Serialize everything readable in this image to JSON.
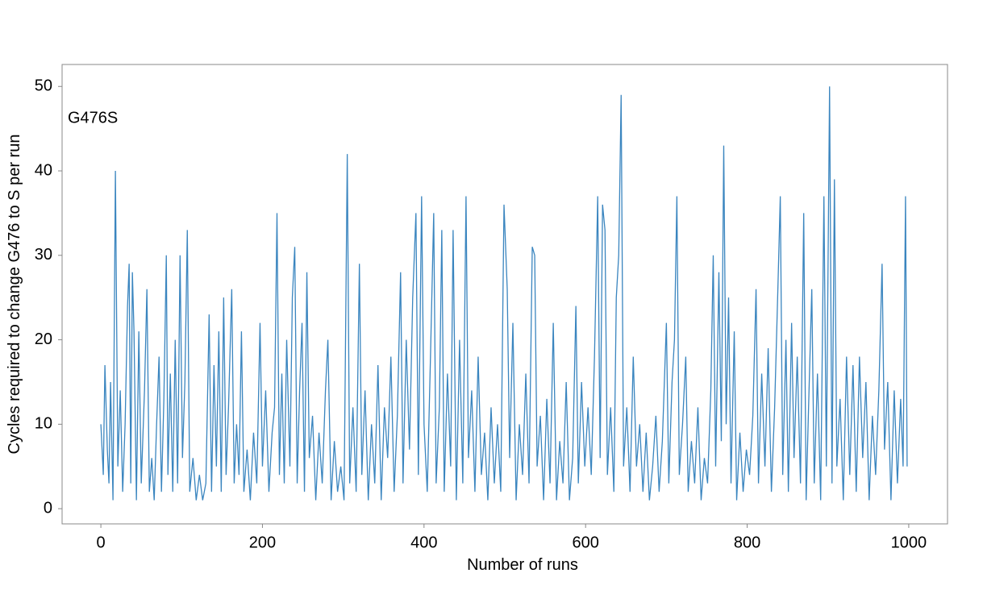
{
  "chart_data": {
    "type": "line",
    "xlabel": "Number of runs",
    "ylabel": "Cycles required to change G476 to S per run",
    "annotation": "G476S",
    "xlim": [
      -48,
      1048
    ],
    "ylim": [
      -1.8,
      52.6
    ],
    "xticks": [
      0,
      200,
      400,
      600,
      800,
      1000
    ],
    "yticks": [
      0,
      10,
      20,
      30,
      40,
      50
    ],
    "grid": false,
    "series": [
      {
        "color": "#3a85bf",
        "x": [
          0,
          3,
          5,
          8,
          10,
          12,
          15,
          18,
          21,
          24,
          27,
          30,
          33,
          35,
          37,
          39,
          41,
          44,
          47,
          50,
          54,
          57,
          60,
          63,
          66,
          69,
          72,
          75,
          78,
          81,
          83,
          86,
          89,
          92,
          95,
          98,
          101,
          104,
          107,
          110,
          114,
          118,
          122,
          126,
          130,
          134,
          137,
          140,
          143,
          146,
          149,
          152,
          155,
          158,
          162,
          165,
          168,
          171,
          174,
          177,
          181,
          185,
          189,
          193,
          197,
          200,
          204,
          208,
          212,
          215,
          218,
          221,
          224,
          227,
          230,
          234,
          237,
          240,
          243,
          246,
          249,
          252,
          255,
          258,
          262,
          266,
          270,
          274,
          278,
          281,
          285,
          289,
          293,
          297,
          301,
          305,
          308,
          312,
          316,
          320,
          323,
          327,
          331,
          335,
          339,
          343,
          347,
          351,
          355,
          359,
          363,
          367,
          371,
          374,
          378,
          382,
          386,
          390,
          393,
          397,
          400,
          404,
          408,
          412,
          415,
          419,
          422,
          425,
          429,
          433,
          436,
          440,
          444,
          448,
          452,
          455,
          459,
          463,
          467,
          471,
          475,
          479,
          483,
          487,
          491,
          495,
          499,
          503,
          506,
          510,
          514,
          518,
          522,
          526,
          530,
          534,
          537,
          540,
          544,
          548,
          552,
          556,
          560,
          564,
          568,
          572,
          576,
          580,
          584,
          588,
          591,
          595,
          599,
          603,
          607,
          611,
          615,
          618,
          621,
          624,
          627,
          631,
          635,
          638,
          641,
          644,
          647,
          651,
          655,
          659,
          663,
          667,
          671,
          675,
          679,
          683,
          687,
          691,
          695,
          700,
          703,
          707,
          710,
          713,
          716,
          720,
          724,
          727,
          731,
          735,
          739,
          743,
          747,
          751,
          755,
          758,
          761,
          765,
          768,
          771,
          774,
          777,
          780,
          784,
          787,
          791,
          795,
          799,
          803,
          807,
          811,
          814,
          818,
          822,
          826,
          830,
          834,
          838,
          841,
          844,
          848,
          851,
          855,
          858,
          862,
          866,
          870,
          873,
          876,
          880,
          883,
          887,
          891,
          895,
          898,
          902,
          905,
          908,
          911,
          915,
          919,
          923,
          927,
          931,
          935,
          939,
          943,
          947,
          951,
          955,
          959,
          963,
          967,
          970,
          974,
          978,
          982,
          986,
          990,
          993,
          996,
          998
        ],
        "values": [
          10,
          4,
          17,
          7,
          3,
          15,
          1,
          40,
          5,
          14,
          2,
          10,
          24,
          29,
          3,
          28,
          21,
          1,
          21,
          3,
          14,
          26,
          2,
          6,
          1,
          10,
          18,
          2,
          13,
          30,
          4,
          16,
          2,
          20,
          3,
          30,
          6,
          15,
          33,
          2,
          6,
          1,
          4,
          1,
          3,
          23,
          2,
          17,
          5,
          21,
          2,
          25,
          4,
          12,
          26,
          3,
          10,
          4,
          21,
          2,
          7,
          1,
          9,
          3,
          22,
          5,
          14,
          2,
          9,
          12,
          35,
          4,
          16,
          3,
          20,
          5,
          25,
          31,
          3,
          14,
          22,
          2,
          28,
          6,
          11,
          1,
          9,
          3,
          14,
          20,
          1,
          8,
          2,
          5,
          1,
          42,
          3,
          12,
          2,
          29,
          4,
          14,
          1,
          10,
          3,
          17,
          1,
          12,
          6,
          18,
          2,
          11,
          28,
          3,
          20,
          7,
          25,
          35,
          4,
          37,
          10,
          2,
          18,
          35,
          3,
          12,
          33,
          2,
          16,
          5,
          33,
          1,
          20,
          3,
          37,
          6,
          14,
          2,
          18,
          4,
          9,
          1,
          12,
          3,
          10,
          2,
          36,
          26,
          6,
          22,
          1,
          10,
          4,
          16,
          3,
          31,
          30,
          5,
          11,
          1,
          13,
          3,
          22,
          1,
          8,
          3,
          15,
          1,
          6,
          24,
          3,
          15,
          5,
          12,
          4,
          18,
          37,
          6,
          36,
          33,
          4,
          12,
          2,
          25,
          30,
          49,
          5,
          12,
          2,
          18,
          5,
          10,
          2,
          9,
          1,
          5,
          11,
          2,
          8,
          22,
          3,
          15,
          20,
          37,
          4,
          10,
          18,
          2,
          8,
          3,
          12,
          1,
          6,
          3,
          14,
          30,
          5,
          28,
          8,
          43,
          10,
          25,
          3,
          21,
          1,
          9,
          2,
          7,
          4,
          11,
          26,
          3,
          16,
          5,
          19,
          2,
          12,
          26,
          37,
          4,
          20,
          2,
          22,
          6,
          18,
          3,
          35,
          1,
          12,
          26,
          3,
          16,
          1,
          37,
          5,
          50,
          3,
          39,
          5,
          13,
          1,
          18,
          4,
          17,
          2,
          18,
          6,
          15,
          1,
          11,
          4,
          14,
          29,
          7,
          15,
          1,
          14,
          3,
          13,
          5,
          37,
          5
        ]
      }
    ]
  }
}
